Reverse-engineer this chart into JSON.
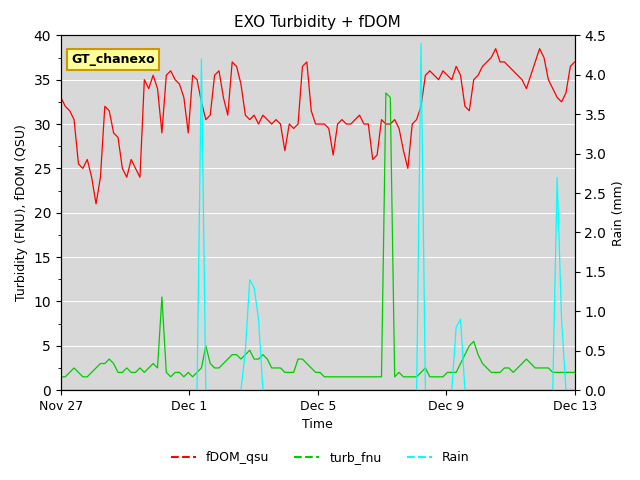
{
  "title": "EXO Turbidity + fDOM",
  "xlabel": "Time",
  "ylabel_left": "Turbidity (FNU), fDOM (QSU)",
  "ylabel_right": "Rain (mm)",
  "ylim_left": [
    0,
    40
  ],
  "ylim_right": [
    0,
    4.5
  ],
  "yticks_left": [
    0,
    5,
    10,
    15,
    20,
    25,
    30,
    35,
    40
  ],
  "yticks_right": [
    0.0,
    0.5,
    1.0,
    1.5,
    2.0,
    2.5,
    3.0,
    3.5,
    4.0,
    4.5
  ],
  "bg_color": "#d8d8d8",
  "fig_bg": "#ffffff",
  "legend_label_box": "GT_chanexo",
  "legend_box_bg": "#ffff99",
  "legend_box_edge": "#cc9900",
  "series": {
    "fDOM_qsu": {
      "color": "#ff0000",
      "label": "fDOM_qsu",
      "axis": "left"
    },
    "turb_fnu": {
      "color": "#00cc00",
      "label": "turb_fnu",
      "axis": "left"
    },
    "Rain": {
      "color": "#00ffff",
      "label": "Rain",
      "axis": "right"
    }
  },
  "xtick_labels": [
    "Nov 27",
    "Dec 1",
    "Dec 5",
    "Dec 9",
    "Dec 13"
  ],
  "xtick_positions": [
    0,
    4,
    8,
    12,
    16
  ],
  "num_days": 17,
  "fdom_data": [
    33.0,
    32.0,
    31.5,
    30.5,
    25.5,
    25.0,
    26.0,
    24.0,
    21.0,
    24.0,
    32.0,
    31.5,
    29.0,
    28.5,
    25.0,
    24.0,
    26.0,
    25.0,
    24.0,
    35.0,
    34.0,
    35.5,
    34.0,
    29.0,
    35.5,
    36.0,
    35.0,
    34.5,
    33.0,
    29.0,
    35.5,
    35.0,
    32.5,
    30.5,
    31.0,
    35.5,
    36.0,
    33.0,
    31.0,
    37.0,
    36.5,
    34.5,
    31.0,
    30.5,
    31.0,
    30.0,
    31.0,
    30.5,
    30.0,
    30.5,
    30.0,
    27.0,
    30.0,
    29.5,
    30.0,
    36.5,
    37.0,
    31.5,
    30.0,
    30.0,
    30.0,
    29.5,
    26.5,
    30.0,
    30.5,
    30.0,
    30.0,
    30.5,
    31.0,
    30.0,
    30.0,
    26.0,
    26.5,
    30.5,
    30.0,
    30.0,
    30.5,
    29.5,
    27.0,
    25.0,
    30.0,
    30.5,
    32.0,
    35.5,
    36.0,
    35.5,
    35.0,
    36.0,
    35.5,
    35.0,
    36.5,
    35.5,
    32.0,
    31.5,
    35.0,
    35.5,
    36.5,
    37.0,
    37.5,
    38.5,
    37.0,
    37.0,
    36.5,
    36.0,
    35.5,
    35.0,
    34.0,
    35.5,
    37.0,
    38.5,
    37.5,
    35.0,
    34.0,
    33.0,
    32.5,
    33.5,
    36.5,
    37.0
  ],
  "turb_data": [
    1.5,
    1.5,
    2.0,
    2.5,
    2.0,
    1.5,
    1.5,
    2.0,
    2.5,
    3.0,
    3.0,
    3.5,
    3.0,
    2.0,
    2.0,
    2.5,
    2.0,
    2.0,
    2.5,
    2.0,
    2.5,
    3.0,
    2.5,
    10.5,
    2.0,
    1.5,
    2.0,
    2.0,
    1.5,
    2.0,
    1.5,
    2.0,
    2.5,
    5.0,
    3.0,
    2.5,
    2.5,
    3.0,
    3.5,
    4.0,
    4.0,
    3.5,
    4.0,
    4.5,
    3.5,
    3.5,
    4.0,
    3.5,
    2.5,
    2.5,
    2.5,
    2.0,
    2.0,
    2.0,
    3.5,
    3.5,
    3.0,
    2.5,
    2.0,
    2.0,
    1.5,
    1.5,
    1.5,
    1.5,
    1.5,
    1.5,
    1.5,
    1.5,
    1.5,
    1.5,
    1.5,
    1.5,
    1.5,
    1.5,
    33.5,
    33.0,
    1.5,
    2.0,
    1.5,
    1.5,
    1.5,
    1.5,
    2.0,
    2.5,
    1.5,
    1.5,
    1.5,
    1.5,
    2.0,
    2.0,
    2.0,
    3.0,
    4.0,
    5.0,
    5.5,
    4.0,
    3.0,
    2.5,
    2.0,
    2.0,
    2.0,
    2.5,
    2.5,
    2.0,
    2.5,
    3.0,
    3.5,
    3.0,
    2.5,
    2.5,
    2.5,
    2.5,
    2.0,
    2.0,
    2.0,
    2.0,
    2.0,
    2.0
  ],
  "rain_data": [
    0.0,
    0.0,
    0.0,
    0.0,
    0.0,
    0.0,
    0.0,
    0.0,
    0.0,
    0.0,
    0.0,
    0.0,
    0.0,
    0.0,
    0.0,
    0.0,
    0.0,
    0.0,
    0.0,
    0.0,
    0.0,
    0.0,
    0.0,
    0.0,
    0.0,
    0.0,
    0.0,
    0.0,
    0.0,
    0.0,
    0.0,
    0.0,
    4.2,
    0.0,
    0.0,
    0.0,
    0.0,
    0.0,
    0.0,
    0.0,
    0.0,
    0.0,
    0.5,
    1.4,
    1.3,
    0.9,
    0.0,
    0.0,
    0.0,
    0.0,
    0.0,
    0.0,
    0.0,
    0.0,
    0.0,
    0.0,
    0.0,
    0.0,
    0.0,
    0.0,
    0.0,
    0.0,
    0.0,
    0.0,
    0.0,
    0.0,
    0.0,
    0.0,
    0.0,
    0.0,
    0.0,
    0.0,
    0.0,
    0.0,
    0.0,
    0.0,
    0.0,
    0.0,
    0.0,
    0.0,
    0.0,
    0.0,
    4.4,
    0.0,
    0.0,
    0.0,
    0.0,
    0.0,
    0.0,
    0.0,
    0.8,
    0.9,
    0.0,
    0.0,
    0.0,
    0.0,
    0.0,
    0.0,
    0.0,
    0.0,
    0.0,
    0.0,
    0.0,
    0.0,
    0.0,
    0.0,
    0.0,
    0.0,
    0.0,
    0.0,
    0.0,
    0.0,
    0.0,
    2.7,
    0.9,
    0.0,
    0.0,
    0.0
  ]
}
